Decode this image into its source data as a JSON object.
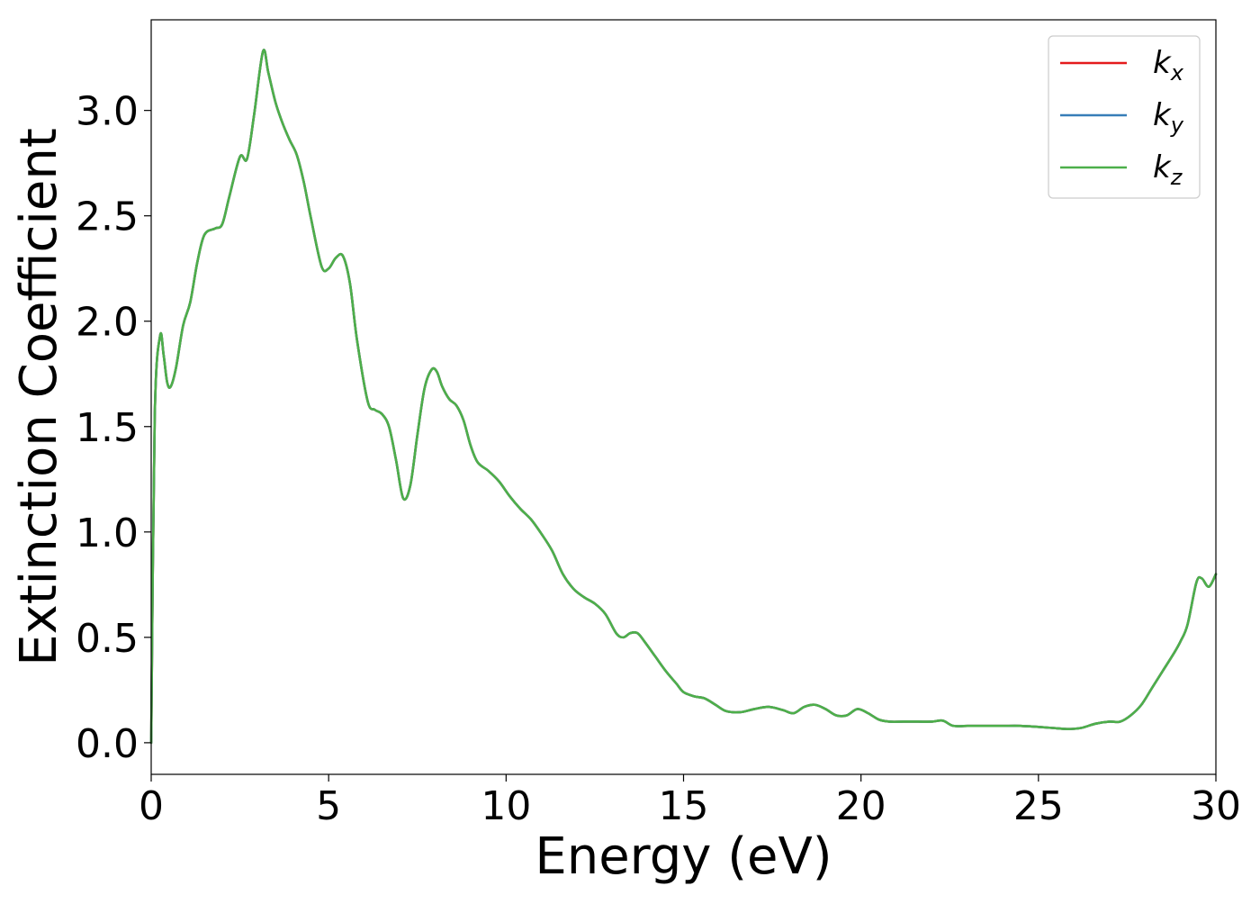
{
  "chart_data": {
    "type": "line",
    "title": "",
    "xlabel": "Energy (eV)",
    "ylabel": "Extinction Coefficient",
    "xlim": [
      0,
      30
    ],
    "ylim": [
      -0.15,
      3.43
    ],
    "xticks": [
      0,
      5,
      10,
      15,
      20,
      25,
      30
    ],
    "xtick_labels": [
      "0",
      "5",
      "10",
      "15",
      "20",
      "25",
      "30"
    ],
    "yticks": [
      0.0,
      0.5,
      1.0,
      1.5,
      2.0,
      2.5,
      3.0
    ],
    "ytick_labels": [
      "0.0",
      "0.5",
      "1.0",
      "1.5",
      "2.0",
      "2.5",
      "3.0"
    ],
    "grid": false,
    "legend_position": "top-right",
    "x": [
      0.0,
      0.1,
      0.25,
      0.35,
      0.45,
      0.55,
      0.7,
      0.9,
      1.1,
      1.3,
      1.5,
      1.8,
      2.0,
      2.2,
      2.5,
      2.7,
      2.9,
      3.15,
      3.3,
      3.5,
      3.7,
      3.9,
      4.1,
      4.3,
      4.5,
      4.8,
      5.0,
      5.2,
      5.4,
      5.6,
      5.8,
      6.1,
      6.3,
      6.5,
      6.7,
      6.9,
      7.1,
      7.3,
      7.5,
      7.7,
      7.9,
      8.05,
      8.2,
      8.4,
      8.6,
      8.8,
      9.0,
      9.2,
      9.5,
      9.8,
      10.1,
      10.4,
      10.7,
      11.0,
      11.3,
      11.6,
      11.9,
      12.2,
      12.5,
      12.8,
      13.1,
      13.3,
      13.5,
      13.7,
      13.9,
      14.2,
      14.5,
      14.8,
      15.0,
      15.3,
      15.6,
      15.9,
      16.2,
      16.6,
      17.0,
      17.4,
      17.8,
      18.1,
      18.4,
      18.7,
      19.0,
      19.3,
      19.6,
      19.9,
      20.2,
      20.5,
      20.8,
      21.2,
      21.6,
      22.0,
      22.3,
      22.6,
      23.0,
      23.5,
      24.0,
      24.5,
      25.0,
      25.4,
      25.8,
      26.2,
      26.6,
      27.0,
      27.3,
      27.6,
      27.9,
      28.2,
      28.5,
      28.8,
      29.0,
      29.2,
      29.45,
      29.6,
      29.8,
      30.0
    ],
    "series": [
      {
        "name": "k_x",
        "color": "#e41a1c",
        "values": [
          0.0,
          1.55,
          1.93,
          1.84,
          1.71,
          1.69,
          1.78,
          1.98,
          2.09,
          2.28,
          2.41,
          2.44,
          2.46,
          2.59,
          2.78,
          2.77,
          2.98,
          3.28,
          3.18,
          3.04,
          2.94,
          2.86,
          2.79,
          2.66,
          2.49,
          2.26,
          2.25,
          2.3,
          2.31,
          2.18,
          1.91,
          1.62,
          1.58,
          1.56,
          1.5,
          1.34,
          1.16,
          1.22,
          1.46,
          1.68,
          1.77,
          1.76,
          1.69,
          1.63,
          1.6,
          1.53,
          1.41,
          1.33,
          1.29,
          1.24,
          1.17,
          1.11,
          1.06,
          0.99,
          0.91,
          0.8,
          0.73,
          0.69,
          0.66,
          0.61,
          0.52,
          0.5,
          0.52,
          0.52,
          0.48,
          0.41,
          0.34,
          0.28,
          0.24,
          0.22,
          0.21,
          0.18,
          0.15,
          0.145,
          0.16,
          0.17,
          0.155,
          0.14,
          0.17,
          0.18,
          0.16,
          0.13,
          0.13,
          0.16,
          0.14,
          0.11,
          0.1,
          0.1,
          0.1,
          0.1,
          0.105,
          0.08,
          0.08,
          0.08,
          0.08,
          0.08,
          0.075,
          0.07,
          0.065,
          0.07,
          0.09,
          0.1,
          0.1,
          0.13,
          0.18,
          0.26,
          0.34,
          0.42,
          0.48,
          0.56,
          0.76,
          0.78,
          0.74,
          0.8
        ]
      },
      {
        "name": "k_y",
        "color": "#377eb8",
        "values": [
          0.0,
          1.55,
          1.93,
          1.84,
          1.71,
          1.69,
          1.78,
          1.98,
          2.09,
          2.28,
          2.41,
          2.44,
          2.46,
          2.59,
          2.78,
          2.77,
          2.98,
          3.28,
          3.18,
          3.04,
          2.94,
          2.86,
          2.79,
          2.66,
          2.49,
          2.26,
          2.25,
          2.3,
          2.31,
          2.18,
          1.91,
          1.62,
          1.58,
          1.56,
          1.5,
          1.34,
          1.16,
          1.22,
          1.46,
          1.68,
          1.77,
          1.76,
          1.69,
          1.63,
          1.6,
          1.53,
          1.41,
          1.33,
          1.29,
          1.24,
          1.17,
          1.11,
          1.06,
          0.99,
          0.91,
          0.8,
          0.73,
          0.69,
          0.66,
          0.61,
          0.52,
          0.5,
          0.52,
          0.52,
          0.48,
          0.41,
          0.34,
          0.28,
          0.24,
          0.22,
          0.21,
          0.18,
          0.15,
          0.145,
          0.16,
          0.17,
          0.155,
          0.14,
          0.17,
          0.18,
          0.16,
          0.13,
          0.13,
          0.16,
          0.14,
          0.11,
          0.1,
          0.1,
          0.1,
          0.1,
          0.105,
          0.08,
          0.08,
          0.08,
          0.08,
          0.08,
          0.075,
          0.07,
          0.065,
          0.07,
          0.09,
          0.1,
          0.1,
          0.13,
          0.18,
          0.26,
          0.34,
          0.42,
          0.48,
          0.56,
          0.76,
          0.78,
          0.74,
          0.8
        ]
      },
      {
        "name": "k_z",
        "color": "#4daf4a",
        "values": [
          0.0,
          1.55,
          1.93,
          1.84,
          1.71,
          1.69,
          1.78,
          1.98,
          2.09,
          2.28,
          2.41,
          2.44,
          2.46,
          2.59,
          2.78,
          2.77,
          2.98,
          3.28,
          3.18,
          3.04,
          2.94,
          2.86,
          2.79,
          2.66,
          2.49,
          2.26,
          2.25,
          2.3,
          2.31,
          2.18,
          1.91,
          1.62,
          1.58,
          1.56,
          1.5,
          1.34,
          1.16,
          1.22,
          1.46,
          1.68,
          1.77,
          1.76,
          1.69,
          1.63,
          1.6,
          1.53,
          1.41,
          1.33,
          1.29,
          1.24,
          1.17,
          1.11,
          1.06,
          0.99,
          0.91,
          0.8,
          0.73,
          0.69,
          0.66,
          0.61,
          0.52,
          0.5,
          0.52,
          0.52,
          0.48,
          0.41,
          0.34,
          0.28,
          0.24,
          0.22,
          0.21,
          0.18,
          0.15,
          0.145,
          0.16,
          0.17,
          0.155,
          0.14,
          0.17,
          0.18,
          0.16,
          0.13,
          0.13,
          0.16,
          0.14,
          0.11,
          0.1,
          0.1,
          0.1,
          0.1,
          0.105,
          0.08,
          0.08,
          0.08,
          0.08,
          0.08,
          0.075,
          0.07,
          0.065,
          0.07,
          0.09,
          0.1,
          0.1,
          0.13,
          0.18,
          0.26,
          0.34,
          0.42,
          0.48,
          0.56,
          0.76,
          0.78,
          0.74,
          0.8
        ]
      }
    ],
    "legend": [
      {
        "base": "k",
        "sub": "x",
        "color": "#e41a1c"
      },
      {
        "base": "k",
        "sub": "y",
        "color": "#377eb8"
      },
      {
        "base": "k",
        "sub": "z",
        "color": "#4daf4a"
      }
    ]
  }
}
